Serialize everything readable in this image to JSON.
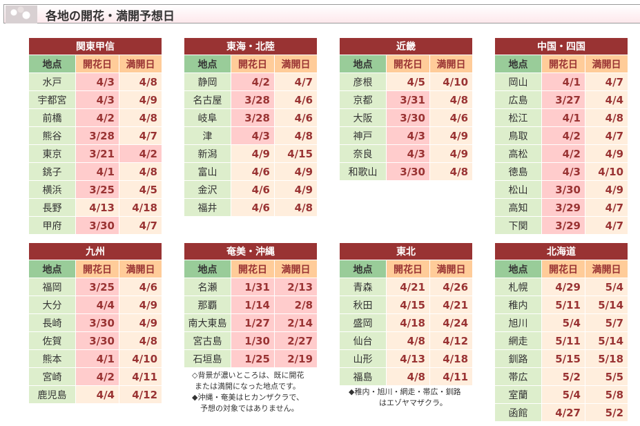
{
  "title": "各地の開花・満開予想日",
  "columns": {
    "place": "地点",
    "bloom": "開花日",
    "full": "満開日"
  },
  "regions": [
    {
      "name": "関東甲信",
      "rows": [
        [
          "水戸",
          "4/3",
          1,
          "4/8",
          0
        ],
        [
          "宇都宮",
          "4/3",
          1,
          "4/9",
          0
        ],
        [
          "前橋",
          "4/2",
          1,
          "4/8",
          0
        ],
        [
          "熊谷",
          "3/28",
          1,
          "4/7",
          0
        ],
        [
          "東京",
          "3/21",
          1,
          "4/2",
          1
        ],
        [
          "銚子",
          "4/1",
          1,
          "4/8",
          0
        ],
        [
          "横浜",
          "3/25",
          1,
          "4/5",
          0
        ],
        [
          "長野",
          "4/13",
          0,
          "4/18",
          0
        ],
        [
          "甲府",
          "3/30",
          1,
          "4/7",
          0
        ]
      ]
    },
    {
      "name": "東海・北陸",
      "rows": [
        [
          "静岡",
          "4/2",
          1,
          "4/7",
          0
        ],
        [
          "名古屋",
          "3/28",
          1,
          "4/6",
          0
        ],
        [
          "岐阜",
          "3/28",
          1,
          "4/6",
          0
        ],
        [
          "津",
          "4/3",
          1,
          "4/8",
          0
        ],
        [
          "新潟",
          "4/9",
          0,
          "4/15",
          0
        ],
        [
          "富山",
          "4/6",
          0,
          "4/9",
          0
        ],
        [
          "金沢",
          "4/6",
          0,
          "4/9",
          0
        ],
        [
          "福井",
          "4/6",
          0,
          "4/8",
          0
        ]
      ]
    },
    {
      "name": "近畿",
      "rows": [
        [
          "彦根",
          "4/5",
          0,
          "4/10",
          0
        ],
        [
          "京都",
          "3/31",
          1,
          "4/8",
          0
        ],
        [
          "大阪",
          "3/30",
          1,
          "4/6",
          0
        ],
        [
          "神戸",
          "4/3",
          1,
          "4/9",
          0
        ],
        [
          "奈良",
          "4/3",
          1,
          "4/9",
          0
        ],
        [
          "和歌山",
          "3/30",
          1,
          "4/8",
          0
        ]
      ]
    },
    {
      "name": "中国・四国",
      "rows": [
        [
          "岡山",
          "4/1",
          1,
          "4/7",
          0
        ],
        [
          "広島",
          "3/27",
          1,
          "4/4",
          0
        ],
        [
          "松江",
          "4/1",
          1,
          "4/8",
          0
        ],
        [
          "鳥取",
          "4/2",
          1,
          "4/7",
          0
        ],
        [
          "高松",
          "4/2",
          1,
          "4/9",
          0
        ],
        [
          "徳島",
          "4/3",
          1,
          "4/10",
          0
        ],
        [
          "松山",
          "3/30",
          1,
          "4/9",
          0
        ],
        [
          "高知",
          "3/29",
          1,
          "4/7",
          0
        ],
        [
          "下関",
          "3/29",
          1,
          "4/7",
          0
        ]
      ]
    },
    {
      "name": "九州",
      "rows": [
        [
          "福岡",
          "3/25",
          1,
          "4/6",
          0
        ],
        [
          "大分",
          "4/4",
          1,
          "4/9",
          0
        ],
        [
          "長崎",
          "3/30",
          1,
          "4/9",
          0
        ],
        [
          "佐賀",
          "3/30",
          1,
          "4/8",
          0
        ],
        [
          "熊本",
          "4/1",
          1,
          "4/10",
          0
        ],
        [
          "宮崎",
          "4/2",
          1,
          "4/11",
          0
        ],
        [
          "鹿児島",
          "4/4",
          0,
          "4/12",
          0
        ]
      ]
    },
    {
      "name": "奄美・沖縄",
      "rows": [
        [
          "名瀬",
          "1/31",
          1,
          "2/13",
          1
        ],
        [
          "那覇",
          "1/14",
          1,
          "2/8",
          1
        ],
        [
          "南大東島",
          "1/27",
          1,
          "2/14",
          1
        ],
        [
          "宮古島",
          "1/30",
          1,
          "2/27",
          1
        ],
        [
          "石垣島",
          "1/25",
          1,
          "2/19",
          1
        ]
      ]
    },
    {
      "name": "東北",
      "rows": [
        [
          "青森",
          "4/21",
          0,
          "4/26",
          0
        ],
        [
          "秋田",
          "4/15",
          0,
          "4/21",
          0
        ],
        [
          "盛岡",
          "4/18",
          0,
          "4/24",
          0
        ],
        [
          "仙台",
          "4/8",
          0,
          "4/12",
          0
        ],
        [
          "山形",
          "4/13",
          0,
          "4/18",
          0
        ],
        [
          "福島",
          "4/8",
          0,
          "4/11",
          0
        ]
      ]
    },
    {
      "name": "北海道",
      "rows": [
        [
          "札幌",
          "4/29",
          0,
          "5/4",
          0
        ],
        [
          "稚内",
          "5/11",
          0,
          "5/14",
          0
        ],
        [
          "旭川",
          "5/4",
          0,
          "5/7",
          0
        ],
        [
          "網走",
          "5/11",
          0,
          "5/14",
          0
        ],
        [
          "釧路",
          "5/15",
          0,
          "5/18",
          0
        ],
        [
          "帯広",
          "5/2",
          0,
          "5/5",
          0
        ],
        [
          "室蘭",
          "5/4",
          0,
          "5/8",
          0
        ],
        [
          "函館",
          "4/27",
          0,
          "5/2",
          0
        ]
      ]
    }
  ],
  "notes": {
    "okinawa": [
      "◇背景が濃いところは、既に開花",
      "または満開になった地点です。",
      "◆沖縄・奄美はヒカンザクラで、",
      "予想の対象ではありません。"
    ],
    "tohoku": [
      "◆稚内・旭川・網走・帯広・釧路",
      "はエゾヤマザクラ。"
    ]
  },
  "colors": {
    "header": "#993333",
    "place": "#ddeecc",
    "bloomed": "#ffcccc",
    "notBloomed": "#ffeedd"
  }
}
